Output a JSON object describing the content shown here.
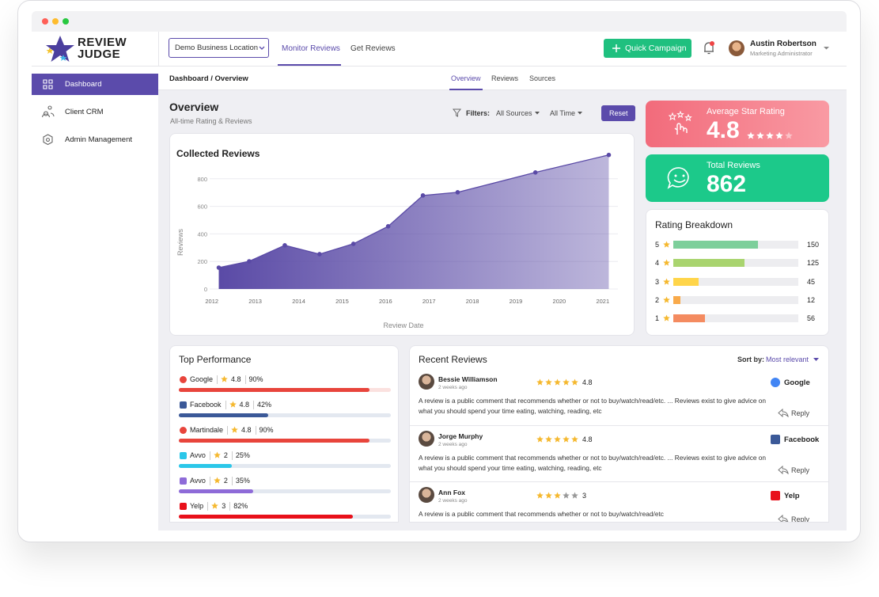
{
  "brand": {
    "line1": "REVIEW",
    "line2": "JUDGE"
  },
  "sidebar": {
    "items": [
      "Dashboard",
      "Client CRM",
      "Admin Management"
    ]
  },
  "header": {
    "location": "Demo Business Location",
    "tabs": [
      "Monitor Reviews",
      "Get Reviews"
    ],
    "quick_campaign": "Quick Campaign",
    "user": {
      "name": "Austin Robertson",
      "role": "Marketing Administrator"
    }
  },
  "subheader": {
    "breadcrumb": "Dashboard / Overview",
    "tabs": [
      "Overview",
      "Reviews",
      "Sources"
    ]
  },
  "overview": {
    "title": "Overview",
    "subtitle": "All-time Rating & Reviews",
    "filters_label": "Filters:",
    "filters": [
      "All Sources",
      "All Time"
    ],
    "reset": "Reset"
  },
  "chart_data": {
    "type": "area",
    "title": "Collected Reviews",
    "x_label": "Review Date",
    "y_label": "Reviews",
    "x": [
      2012.16,
      2012.86,
      2013.68,
      2014.48,
      2015.26,
      2016.06,
      2016.86,
      2017.66,
      2019.45,
      2021.14
    ],
    "values": [
      155,
      201,
      317,
      253,
      328,
      455,
      679,
      702,
      846,
      973
    ],
    "color": "#5a4aa6",
    "xlim": [
      2011.95,
      2021.35
    ],
    "ylim": [
      0,
      1000
    ],
    "xticks": [
      2012,
      2013,
      2014,
      2015,
      2016,
      2017,
      2018,
      2019,
      2020,
      2021
    ],
    "yticks": [
      0,
      200,
      400,
      600,
      800
    ],
    "grid": true
  },
  "average_rating": {
    "label": "Average Star Rating",
    "value": 4.8
  },
  "total_reviews": {
    "label": "Total Reviews",
    "value": 862
  },
  "rating_breakdown": {
    "title": "Rating Breakdown",
    "rows": [
      {
        "stars": 5,
        "count": 150,
        "color": "#7dcf9b"
      },
      {
        "stars": 4,
        "count": 125,
        "color": "#a9d46f"
      },
      {
        "stars": 3,
        "count": 45,
        "color": "#ffd54a"
      },
      {
        "stars": 2,
        "count": 12,
        "color": "#f9aa4b"
      },
      {
        "stars": 1,
        "count": 56,
        "color": "#f48b60"
      }
    ]
  },
  "top_performance": {
    "title": "Top Performance",
    "items": [
      {
        "name": "Google",
        "rating": 4.8,
        "share": 90,
        "share_label": "90%",
        "color": "#e8453c",
        "track": "#fbe1df"
      },
      {
        "name": "Facebook",
        "rating": 4.8,
        "share": 42,
        "share_label": "42%",
        "color": "#3b5998",
        "track": "#e3e8f0"
      },
      {
        "name": "Martindale",
        "rating": 4.8,
        "share": 90,
        "share_label": "90%",
        "color": "#e8453c",
        "track": "#e3e8f0"
      },
      {
        "name": "Avvo",
        "rating": 2,
        "share": 25,
        "share_label": "25%",
        "color": "#2bc7e9",
        "track": "#e3e8f0"
      },
      {
        "name": "Avvo",
        "rating": 2,
        "share": 35,
        "share_label": "35%",
        "color": "#8e6bd8",
        "track": "#e3e8f0"
      },
      {
        "name": "Yelp",
        "rating": 3,
        "share": 82,
        "share_label": "82%",
        "color": "#e8101a",
        "track": "#e3e8f0"
      }
    ]
  },
  "recent_reviews": {
    "title": "Recent Reviews",
    "sort_label": "Sort by:",
    "sort_value": "Most relevant",
    "reply": "Reply",
    "reviews": [
      {
        "name": "Bessie Williamson",
        "time": "2 weeks ago",
        "rating": 4.8,
        "source": "Google",
        "source_color": "#4285f4",
        "text": "A review is a public comment that recommends whether or not to buy/watch/read/etc. ... Reviews exist to give advice on what you should spend your time eating, watching, reading, etc"
      },
      {
        "name": "Jorge Murphy",
        "time": "2 weeks ago",
        "rating": 4.8,
        "source": "Facebook",
        "source_color": "#3b5998",
        "text": "A review is a public comment that recommends whether or not to buy/watch/read/etc. ... Reviews exist to give advice on what you should spend your time eating, watching, reading, etc"
      },
      {
        "name": "Ann Fox",
        "time": "2 weeks ago",
        "rating": 3,
        "source": "Yelp",
        "source_color": "#e8101a",
        "text": "A review is a public comment that recommends whether or not to buy/watch/read/etc"
      }
    ]
  }
}
